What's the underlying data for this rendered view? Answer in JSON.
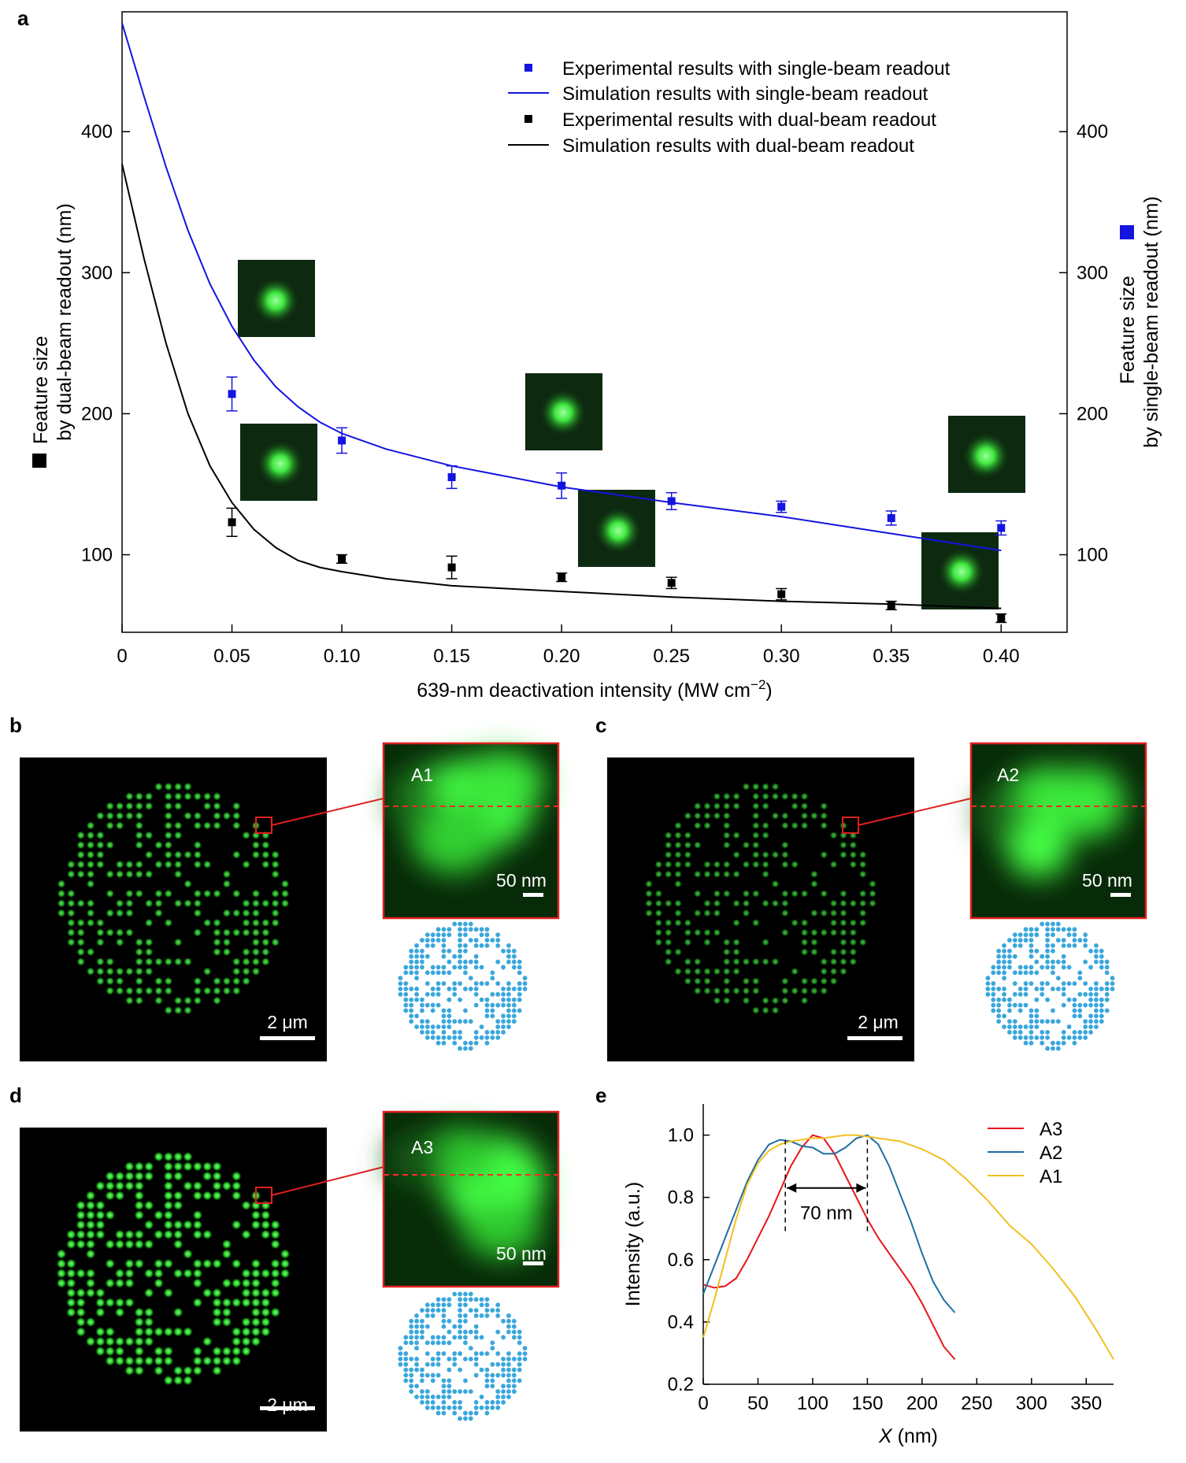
{
  "panels": {
    "a": "a",
    "b": "b",
    "c": "c",
    "d": "d",
    "e": "e"
  },
  "colors": {
    "single_beam": "#1414e0",
    "dual_beam": "#000000",
    "A3": "#e8141c",
    "A2": "#1e6ea0",
    "A1": "#f0c020",
    "micrograph_green": "#39e639",
    "pattern_blue": "#3aa7dc",
    "zoom_box": "#e02020"
  },
  "chart_data": [
    {
      "type": "scatter",
      "panel": "a",
      "xlabel": "639-nm deactivation intensity (MW cm",
      "xlabel_sup": "−2",
      "xlabel_end": ")",
      "ylabel_left": [
        "Feature size",
        "by dual-beam readout (nm)"
      ],
      "ylabel_right": [
        "Feature size",
        "by single-beam readout (nm)"
      ],
      "xlim": [
        0,
        0.43
      ],
      "ylim": [
        45,
        485
      ],
      "x_ticks": [
        0,
        0.05,
        0.1,
        0.15,
        0.2,
        0.25,
        0.3,
        0.35,
        0.4
      ],
      "x_tick_labels": [
        "0",
        "0.05",
        "0.10",
        "0.15",
        "0.20",
        "0.25",
        "0.30",
        "0.35",
        "0.40"
      ],
      "y_ticks": [
        100,
        200,
        300,
        400
      ],
      "y_tick_labels": [
        "100",
        "200",
        "300",
        "400"
      ],
      "legend_position": "top-right",
      "series": [
        {
          "name": "Experimental results with single-beam readout",
          "kind": "points",
          "color": "#1414e0",
          "x": [
            0.05,
            0.1,
            0.15,
            0.2,
            0.25,
            0.3,
            0.35,
            0.4
          ],
          "y": [
            214,
            181,
            155,
            149,
            138,
            134,
            126,
            119
          ],
          "err": [
            12,
            9,
            8,
            9,
            6,
            4,
            5,
            5
          ]
        },
        {
          "name": "Simulation results with single-beam readout",
          "kind": "line",
          "color": "#1414e0",
          "x": [
            0,
            0.01,
            0.02,
            0.03,
            0.04,
            0.05,
            0.06,
            0.07,
            0.08,
            0.09,
            0.1,
            0.12,
            0.15,
            0.2,
            0.25,
            0.3,
            0.35,
            0.4
          ],
          "y": [
            477,
            425,
            375,
            330,
            292,
            262,
            238,
            219,
            205,
            194,
            186,
            175,
            163,
            148,
            137,
            127,
            115,
            103
          ]
        },
        {
          "name": "Experimental results with dual-beam readout",
          "kind": "points",
          "color": "#000000",
          "x": [
            0.05,
            0.1,
            0.15,
            0.2,
            0.25,
            0.3,
            0.35,
            0.4
          ],
          "y": [
            123,
            97,
            91,
            84,
            80,
            72,
            64,
            55
          ],
          "err": [
            10,
            3,
            8,
            3,
            4,
            4,
            3,
            3
          ]
        },
        {
          "name": "Simulation results with dual-beam readout",
          "kind": "line",
          "color": "#000000",
          "x": [
            0,
            0.01,
            0.02,
            0.03,
            0.04,
            0.05,
            0.06,
            0.07,
            0.08,
            0.09,
            0.1,
            0.12,
            0.15,
            0.2,
            0.25,
            0.3,
            0.35,
            0.4
          ],
          "y": [
            377,
            310,
            250,
            200,
            163,
            137,
            118,
            105,
            96,
            91,
            88,
            83,
            78,
            74,
            70,
            67,
            65,
            62
          ]
        }
      ]
    },
    {
      "type": "line",
      "panel": "e",
      "xlabel": "X",
      "xlabel_unit": " (nm)",
      "ylabel": "Intensity (a.u.)",
      "xlim": [
        0,
        375
      ],
      "ylim": [
        0.2,
        1.1
      ],
      "x_ticks": [
        0,
        50,
        100,
        150,
        200,
        250,
        300,
        350
      ],
      "x_tick_labels": [
        "0",
        "50",
        "100",
        "150",
        "200",
        "250",
        "300",
        "350"
      ],
      "y_ticks": [
        0.2,
        0.4,
        0.6,
        0.8,
        1.0
      ],
      "y_tick_labels": [
        "0.2",
        "0.4",
        "0.6",
        "0.8",
        "1.0"
      ],
      "legend_position": "top-right",
      "annotation": {
        "text": "70 nm",
        "x1": 75,
        "x2": 150,
        "arrow_y": 0.83,
        "label_y": 0.75
      },
      "series": [
        {
          "name": "A3",
          "color": "#e8141c",
          "x": [
            0,
            10,
            20,
            30,
            40,
            50,
            60,
            70,
            80,
            90,
            100,
            110,
            120,
            130,
            140,
            150,
            160,
            170,
            180,
            190,
            200,
            210,
            220,
            230
          ],
          "y": [
            0.52,
            0.51,
            0.515,
            0.54,
            0.6,
            0.67,
            0.74,
            0.82,
            0.9,
            0.96,
            1.0,
            0.99,
            0.94,
            0.87,
            0.8,
            0.73,
            0.67,
            0.62,
            0.57,
            0.52,
            0.46,
            0.39,
            0.32,
            0.28
          ]
        },
        {
          "name": "A2",
          "color": "#1e6ea0",
          "x": [
            0,
            10,
            20,
            30,
            40,
            50,
            60,
            70,
            80,
            90,
            100,
            110,
            120,
            130,
            140,
            150,
            160,
            170,
            180,
            190,
            200,
            210,
            220,
            230
          ],
          "y": [
            0.49,
            0.58,
            0.67,
            0.76,
            0.85,
            0.92,
            0.97,
            0.985,
            0.98,
            0.965,
            0.96,
            0.94,
            0.94,
            0.96,
            0.99,
            1.0,
            0.97,
            0.9,
            0.81,
            0.72,
            0.62,
            0.53,
            0.47,
            0.43
          ]
        },
        {
          "name": "A1",
          "color": "#f0c020",
          "x": [
            0,
            10,
            20,
            30,
            40,
            50,
            60,
            70,
            80,
            90,
            100,
            110,
            120,
            130,
            140,
            150,
            160,
            170,
            180,
            200,
            220,
            240,
            260,
            280,
            300,
            320,
            340,
            360,
            375
          ],
          "y": [
            0.35,
            0.47,
            0.6,
            0.73,
            0.84,
            0.91,
            0.95,
            0.97,
            0.98,
            0.985,
            0.99,
            0.99,
            0.995,
            1.0,
            1.0,
            0.995,
            0.99,
            0.985,
            0.98,
            0.955,
            0.92,
            0.86,
            0.79,
            0.71,
            0.65,
            0.57,
            0.48,
            0.37,
            0.28
          ]
        }
      ]
    }
  ],
  "micrographs": {
    "b": {
      "scale_bar": "2 μm",
      "zoom_label": "A1",
      "zoom_scale_bar": "50 nm"
    },
    "c": {
      "scale_bar": "2 μm",
      "zoom_label": "A2",
      "zoom_scale_bar": "50 nm"
    },
    "d": {
      "scale_bar": "2 μm",
      "zoom_label": "A3",
      "zoom_scale_bar": "50 nm"
    }
  }
}
